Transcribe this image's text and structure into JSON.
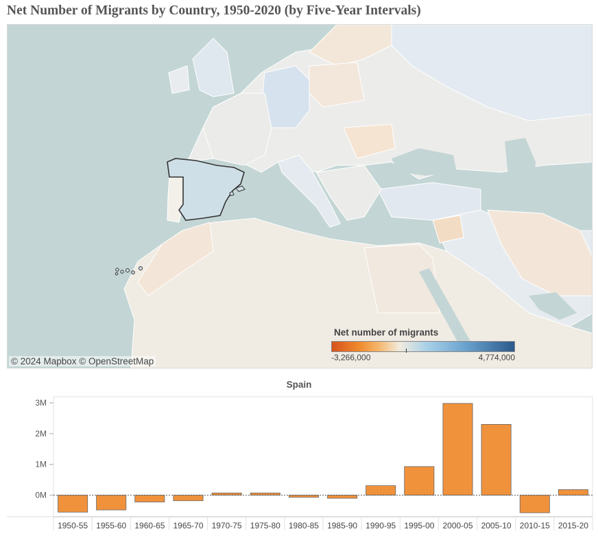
{
  "title": "Net Number of Migrants by Country, 1950-2020 (by Five-Year Intervals)",
  "map": {
    "attribution": "© 2024 Mapbox  © OpenStreetMap",
    "selected_country": "Spain",
    "legend": {
      "title": "Net number of migrants",
      "min_label": "-3,266,000",
      "max_label": "4,774,000",
      "colors": {
        "low": "#d6531d",
        "mid": "#f2ebdd",
        "high": "#2b5a8c"
      }
    }
  },
  "chart_data": {
    "type": "bar",
    "title": "Spain",
    "categories": [
      "1950-55",
      "1955-60",
      "1960-65",
      "1965-70",
      "1970-75",
      "1975-80",
      "1980-85",
      "1985-90",
      "1990-95",
      "1995-00",
      "2000-05",
      "2005-10",
      "2010-15",
      "2015-20"
    ],
    "values": [
      -550000,
      -480000,
      -220000,
      -180000,
      70000,
      70000,
      -70000,
      -100000,
      310000,
      930000,
      2980000,
      2300000,
      -570000,
      180000
    ],
    "ylim": [
      -700000,
      3200000
    ],
    "y_ticks": [
      0,
      1000000,
      2000000,
      3000000
    ],
    "y_tick_labels": [
      "0M",
      "1M",
      "2M",
      "3M"
    ],
    "bar_color": "#f0923c",
    "xlabel": "",
    "ylabel": ""
  }
}
